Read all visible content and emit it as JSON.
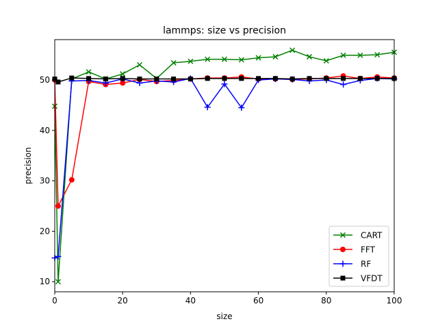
{
  "chart_data": {
    "type": "line",
    "title": "lammps: size vs precision",
    "xlabel": "size",
    "ylabel": "precision",
    "xlim": [
      0,
      100
    ],
    "ylim": [
      8,
      58
    ],
    "xticks": [
      0,
      20,
      40,
      60,
      80,
      100
    ],
    "yticks": [
      10,
      20,
      30,
      40,
      50
    ],
    "legend_position": "lower-right",
    "x": [
      0,
      1,
      5,
      10,
      15,
      20,
      25,
      30,
      35,
      40,
      45,
      50,
      55,
      60,
      65,
      70,
      75,
      80,
      85,
      90,
      95,
      100
    ],
    "series": [
      {
        "name": "CART",
        "color": "#008000",
        "marker": "x",
        "x": [
          0,
          1,
          5,
          10,
          15,
          20,
          25,
          30,
          35,
          40,
          45,
          50,
          55,
          60,
          65,
          70,
          75,
          80,
          85,
          90,
          95,
          100
        ],
        "values": [
          44.8,
          10.0,
          50.2,
          51.6,
          50.2,
          51.2,
          53.0,
          50.3,
          53.4,
          53.7,
          54.1,
          54.1,
          54.0,
          54.4,
          54.6,
          55.9,
          54.6,
          53.8,
          54.9,
          54.9,
          55.0,
          55.5
        ]
      },
      {
        "name": "FFT",
        "color": "#ff0000",
        "marker": "o",
        "x": [
          0,
          1,
          5,
          10,
          15,
          20,
          25,
          30,
          35,
          40,
          45,
          50,
          55,
          60,
          65,
          70,
          75,
          80,
          85,
          90,
          95,
          100
        ],
        "values": [
          50.0,
          25.0,
          30.2,
          49.7,
          49.1,
          49.4,
          50.1,
          49.7,
          49.9,
          50.2,
          50.4,
          50.4,
          50.6,
          50.2,
          50.2,
          50.1,
          50.2,
          50.4,
          50.8,
          50.3,
          50.6,
          50.4
        ]
      },
      {
        "name": "RF",
        "color": "#0000ff",
        "marker": "+",
        "x": [
          0,
          1,
          5,
          10,
          15,
          20,
          25,
          30,
          35,
          40,
          45,
          50,
          55,
          60,
          65,
          70,
          75,
          80,
          85,
          90,
          95,
          100
        ],
        "values": [
          14.7,
          15.0,
          49.8,
          49.9,
          49.4,
          50.2,
          49.4,
          49.8,
          49.6,
          50.3,
          44.6,
          49.2,
          44.5,
          50.0,
          50.2,
          50.1,
          49.8,
          50.0,
          49.1,
          49.9,
          50.3,
          50.2
        ]
      },
      {
        "name": "VFDT",
        "color": "#000000",
        "marker": "s",
        "x": [
          0,
          1,
          5,
          10,
          15,
          20,
          25,
          30,
          35,
          40,
          45,
          50,
          55,
          60,
          65,
          70,
          75,
          80,
          85,
          90,
          95,
          100
        ],
        "values": [
          50.2,
          49.6,
          50.4,
          50.3,
          50.2,
          50.3,
          50.2,
          50.2,
          50.2,
          50.2,
          50.3,
          50.3,
          50.3,
          50.3,
          50.3,
          50.2,
          50.3,
          50.3,
          50.3,
          50.3,
          50.3,
          50.3
        ]
      }
    ]
  }
}
